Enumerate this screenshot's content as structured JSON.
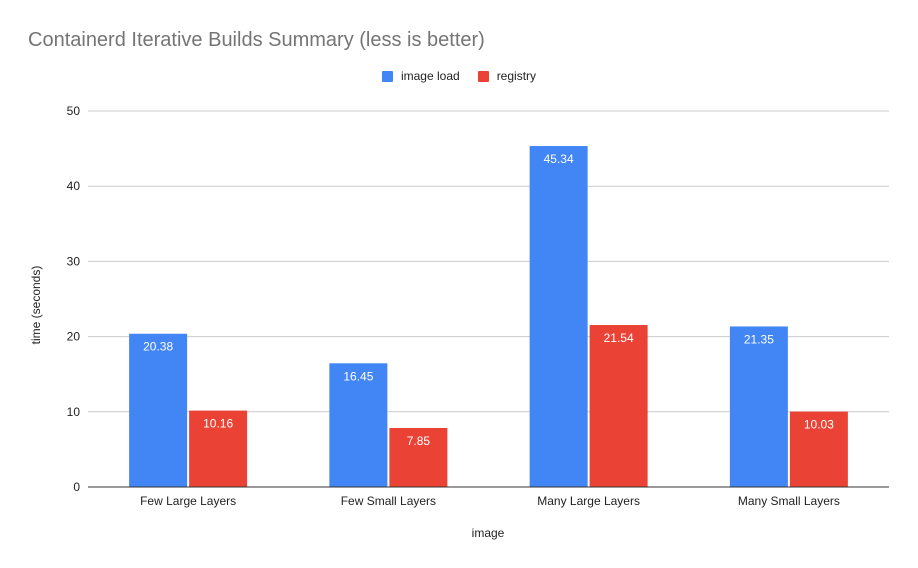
{
  "chart_data": {
    "type": "bar",
    "title": "Containerd Iterative Builds Summary (less is better)",
    "xlabel": "image",
    "ylabel": "time (seconds)",
    "categories": [
      "Few Large Layers",
      "Few Small Layers",
      "Many Large Layers",
      "Many Small Layers"
    ],
    "series": [
      {
        "name": "image load",
        "color": "#4285f4",
        "values": [
          20.38,
          16.45,
          45.34,
          21.35
        ]
      },
      {
        "name": "registry",
        "color": "#ea4335",
        "values": [
          10.16,
          7.85,
          21.54,
          10.03
        ]
      }
    ],
    "ylim": [
      0,
      50
    ],
    "yticks": [
      0,
      10,
      20,
      30,
      40,
      50
    ],
    "grid": true,
    "legend_position": "top",
    "data_labels": true
  }
}
